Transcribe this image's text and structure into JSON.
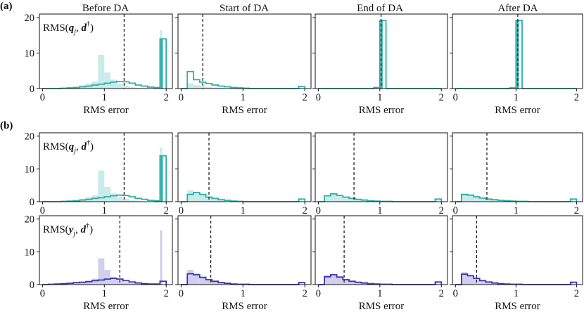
{
  "figure": {
    "panel_labels": [
      "(a)",
      "(b)"
    ],
    "column_titles": [
      "Before DA",
      "Start of DA",
      "End of DA",
      "After DA"
    ],
    "xlabel": "RMS error",
    "row_labels": [
      {
        "prefix": "RMS(",
        "var": "q",
        "sub": "j",
        "mid": ", ",
        "d": "d",
        "sup": "†",
        "suffix": ")"
      },
      {
        "prefix": "RMS(",
        "var": "q",
        "sub": "j",
        "mid": ", ",
        "d": "d",
        "sup": "†",
        "suffix": ")"
      },
      {
        "prefix": "RMS(",
        "var": "y",
        "sub": "j",
        "mid": ", ",
        "d": "d",
        "sup": "†",
        "suffix": ")"
      }
    ],
    "colors": {
      "teal": "#2bb0aa",
      "teal_light": "#bfe8e5",
      "navy": "#3b35b0",
      "navy_light": "#c9c7ea"
    }
  },
  "chart_data": {
    "type": "histogram",
    "xlim": [
      -0.05,
      2.1
    ],
    "ylim": [
      0,
      21
    ],
    "xticks": [
      "0",
      "1",
      "2"
    ],
    "yticks": [
      "0",
      "10",
      "20"
    ],
    "bin_edges": [
      0,
      0.1,
      0.2,
      0.3,
      0.4,
      0.5,
      0.6,
      0.7,
      0.8,
      0.9,
      1.0,
      1.1,
      1.2,
      1.3,
      1.4,
      1.5,
      1.6,
      1.7,
      1.8,
      1.9,
      2.0
    ],
    "rows": [
      {
        "color": "teal",
        "panels": [
          {
            "mean": 1.32,
            "faded": [
              0,
              0,
              0.1,
              0.2,
              0.3,
              0.5,
              0.9,
              1.4,
              2.0,
              9.5,
              4.5,
              2.5,
              1.4,
              0.8,
              0.4,
              0.2,
              0.1,
              0.1,
              0.2,
              16.5
            ],
            "outline": [
              0,
              0,
              0,
              0.1,
              0.2,
              0.3,
              0.5,
              0.7,
              1.0,
              1.2,
              1.5,
              1.8,
              2.0,
              1.9,
              1.5,
              1.0,
              0.7,
              0.4,
              0.3,
              14
            ]
          },
          {
            "mean": 0.35,
            "faded": [
              0,
              1.5,
              1.0,
              0.8,
              0.5,
              0.3,
              0.2,
              0.1,
              0.1,
              0,
              0,
              0,
              0,
              0,
              0,
              0,
              0,
              0,
              0,
              0.8
            ],
            "outline": [
              0,
              4.8,
              2.5,
              1.8,
              1.4,
              1.0,
              0.7,
              0.5,
              0.3,
              0.2,
              0.1,
              0,
              0,
              0,
              0,
              0,
              0,
              0,
              0,
              0.6
            ]
          },
          {
            "mean": 1.02,
            "faded": [
              0,
              0,
              0,
              0,
              0,
              0,
              0,
              0,
              0,
              0.4,
              19.5,
              0,
              0,
              0,
              0,
              0,
              0,
              0,
              0,
              0
            ],
            "outline": [
              0,
              0,
              0,
              0,
              0,
              0,
              0,
              0,
              0,
              0.3,
              19.2,
              0,
              0,
              0,
              0,
              0,
              0,
              0,
              0,
              0
            ]
          },
          {
            "mean": 1.03,
            "faded": [
              0,
              0,
              0,
              0,
              0,
              0,
              0,
              0,
              0,
              0.3,
              19.3,
              0,
              0,
              0,
              0,
              0,
              0,
              0,
              0,
              0
            ],
            "outline": [
              0,
              0,
              0,
              0,
              0,
              0,
              0,
              0,
              0,
              0.2,
              19.2,
              0,
              0,
              0,
              0,
              0,
              0,
              0,
              0,
              0
            ]
          }
        ]
      },
      {
        "color": "teal",
        "panels": [
          {
            "mean": 1.32,
            "faded": [
              0,
              0,
              0.1,
              0.2,
              0.3,
              0.5,
              0.9,
              1.4,
              2.0,
              9.5,
              4.5,
              2.5,
              1.4,
              0.8,
              0.4,
              0.2,
              0.1,
              0.1,
              0.2,
              16.5
            ],
            "outline": [
              0,
              0,
              0,
              0.1,
              0.2,
              0.3,
              0.5,
              0.7,
              1.0,
              1.2,
              1.5,
              1.8,
              2.0,
              1.9,
              1.5,
              1.0,
              0.7,
              0.4,
              0.3,
              14
            ]
          },
          {
            "mean": 0.45,
            "faded": [
              0,
              3.5,
              3.0,
              2.0,
              1.2,
              0.8,
              0.5,
              0.3,
              0.2,
              0.1,
              0,
              0,
              0,
              0,
              0,
              0,
              0,
              0,
              0,
              1.0
            ],
            "outline": [
              0,
              2.2,
              2.8,
              2.2,
              1.4,
              1.0,
              0.6,
              0.4,
              0.2,
              0.1,
              0,
              0,
              0,
              0,
              0,
              0,
              0,
              0,
              0,
              0.8
            ]
          },
          {
            "mean": 0.58,
            "faded": [
              0,
              2.0,
              2.6,
              2.0,
              1.5,
              1.0,
              0.7,
              0.5,
              0.3,
              0.2,
              0.1,
              0.1,
              0,
              0,
              0,
              0,
              0,
              0,
              0,
              0.9
            ],
            "outline": [
              0,
              1.8,
              2.4,
              1.9,
              1.4,
              1.0,
              0.7,
              0.5,
              0.3,
              0.2,
              0.1,
              0.1,
              0,
              0,
              0,
              0,
              0,
              0,
              0,
              0.8
            ]
          },
          {
            "mean": 0.52,
            "faded": [
              0,
              2.4,
              2.2,
              1.6,
              1.2,
              0.9,
              0.6,
              0.4,
              0.3,
              0.2,
              0.1,
              0.1,
              0,
              0,
              0,
              0,
              0,
              0,
              0,
              0.9
            ],
            "outline": [
              0,
              2.2,
              2.0,
              1.5,
              1.1,
              0.8,
              0.6,
              0.4,
              0.3,
              0.2,
              0.1,
              0.1,
              0,
              0,
              0,
              0,
              0,
              0,
              0,
              0.8
            ]
          }
        ]
      },
      {
        "color": "navy",
        "panels": [
          {
            "mean": 1.25,
            "faded": [
              0,
              0.2,
              0.3,
              0.4,
              0.5,
              0.6,
              0.8,
              1.2,
              1.8,
              8.0,
              4.5,
              2.3,
              1.3,
              0.8,
              0.4,
              0.2,
              0.1,
              0.1,
              0.2,
              16.5
            ],
            "outline": [
              0,
              0.1,
              0.2,
              0.3,
              0.4,
              0.6,
              0.7,
              0.9,
              1.2,
              1.4,
              1.7,
              1.9,
              1.7,
              1.2,
              0.8,
              0.5,
              0.3,
              0.2,
              0.2,
              1.0
            ]
          },
          {
            "mean": 0.48,
            "faded": [
              0,
              4.5,
              3.5,
              2.3,
              1.5,
              1.0,
              0.6,
              0.4,
              0.2,
              0.1,
              0.1,
              0,
              0,
              0,
              0,
              0,
              0,
              0,
              0,
              0.8
            ],
            "outline": [
              0,
              3.3,
              3.0,
              2.2,
              1.5,
              1.0,
              0.6,
              0.4,
              0.2,
              0.1,
              0.1,
              0,
              0,
              0,
              0,
              0,
              0,
              0,
              0,
              0.6
            ]
          },
          {
            "mean": 0.42,
            "faded": [
              0,
              2.8,
              3.2,
              2.4,
              1.6,
              1.1,
              0.7,
              0.5,
              0.3,
              0.2,
              0.1,
              0.1,
              0,
              0,
              0,
              0,
              0,
              0,
              0,
              0.9
            ],
            "outline": [
              0,
              2.4,
              3.0,
              2.3,
              1.5,
              1.0,
              0.7,
              0.5,
              0.3,
              0.2,
              0.1,
              0.1,
              0,
              0,
              0,
              0,
              0,
              0,
              0,
              0.8
            ]
          },
          {
            "mean": 0.35,
            "faded": [
              0,
              3.8,
              3.0,
              2.0,
              1.3,
              0.8,
              0.5,
              0.3,
              0.2,
              0.1,
              0.1,
              0,
              0,
              0,
              0,
              0,
              0,
              0,
              0,
              0.8
            ],
            "outline": [
              0,
              3.2,
              2.7,
              1.9,
              1.2,
              0.8,
              0.5,
              0.3,
              0.2,
              0.1,
              0.1,
              0,
              0,
              0,
              0,
              0,
              0,
              0,
              0,
              0.7
            ]
          }
        ]
      }
    ]
  }
}
